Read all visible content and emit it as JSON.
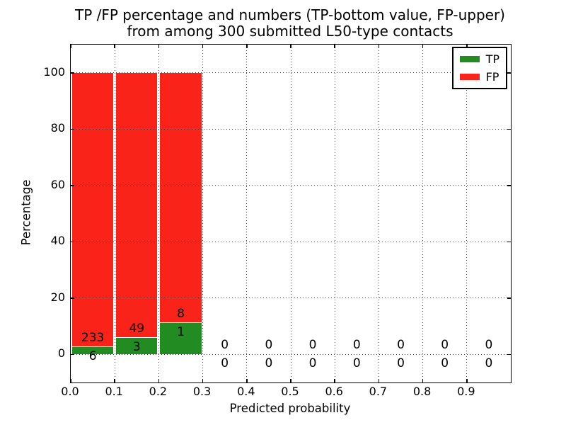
{
  "title": {
    "line1": "TP /FP percentage and numbers (TP-bottom value, FP-upper)",
    "line2": "from among 300 submitted L50-type contacts"
  },
  "axes": {
    "xlabel": "Predicted probability",
    "ylabel": "Percentage"
  },
  "legend": {
    "position": "upper right",
    "entries": [
      {
        "label": "TP",
        "color": "#228b22"
      },
      {
        "label": "FP",
        "color": "#fa231a"
      }
    ]
  },
  "colors": {
    "tp_green": "#228b22",
    "fp_red": "#fa231a",
    "grid": "#000000",
    "background": "#ffffff",
    "text": "#000000"
  },
  "chart_data": {
    "type": "bar",
    "stacked": true,
    "title": "TP /FP percentage and numbers (TP-bottom value, FP-upper) from among 300 submitted L50-type contacts",
    "xlabel": "Predicted probability",
    "ylabel": "Percentage",
    "xlim": [
      0.0,
      1.0
    ],
    "ylim": [
      -10,
      110
    ],
    "grid": "dotted",
    "legend_position": "upper right",
    "bin_width": 0.1,
    "total_contacts": 300,
    "xticks": [
      {
        "value": 0.0,
        "label": "0.0"
      },
      {
        "value": 0.1,
        "label": "0.1"
      },
      {
        "value": 0.2,
        "label": "0.2"
      },
      {
        "value": 0.3,
        "label": "0.3"
      },
      {
        "value": 0.4,
        "label": "0.4"
      },
      {
        "value": 0.5,
        "label": "0.5"
      },
      {
        "value": 0.6,
        "label": "0.6"
      },
      {
        "value": 0.7,
        "label": "0.7"
      },
      {
        "value": 0.8,
        "label": "0.8"
      },
      {
        "value": 0.9,
        "label": "0.9"
      }
    ],
    "yticks": [
      {
        "value": 0,
        "label": "0"
      },
      {
        "value": 20,
        "label": "20"
      },
      {
        "value": 40,
        "label": "40"
      },
      {
        "value": 60,
        "label": "60"
      },
      {
        "value": 80,
        "label": "80"
      },
      {
        "value": 100,
        "label": "100"
      }
    ],
    "bins": [
      {
        "x_start": 0.0,
        "x_end": 0.1,
        "tp_count": 6,
        "fp_count": 233,
        "tp_pct": 2.51,
        "fp_pct": 97.49
      },
      {
        "x_start": 0.1,
        "x_end": 0.2,
        "tp_count": 3,
        "fp_count": 49,
        "tp_pct": 5.77,
        "fp_pct": 94.23
      },
      {
        "x_start": 0.2,
        "x_end": 0.3,
        "tp_count": 1,
        "fp_count": 8,
        "tp_pct": 11.11,
        "fp_pct": 88.89
      },
      {
        "x_start": 0.3,
        "x_end": 0.4,
        "tp_count": 0,
        "fp_count": 0,
        "tp_pct": 0,
        "fp_pct": 0
      },
      {
        "x_start": 0.4,
        "x_end": 0.5,
        "tp_count": 0,
        "fp_count": 0,
        "tp_pct": 0,
        "fp_pct": 0
      },
      {
        "x_start": 0.5,
        "x_end": 0.6,
        "tp_count": 0,
        "fp_count": 0,
        "tp_pct": 0,
        "fp_pct": 0
      },
      {
        "x_start": 0.6,
        "x_end": 0.7,
        "tp_count": 0,
        "fp_count": 0,
        "tp_pct": 0,
        "fp_pct": 0
      },
      {
        "x_start": 0.7,
        "x_end": 0.8,
        "tp_count": 0,
        "fp_count": 0,
        "tp_pct": 0,
        "fp_pct": 0
      },
      {
        "x_start": 0.8,
        "x_end": 0.9,
        "tp_count": 0,
        "fp_count": 0,
        "tp_pct": 0,
        "fp_pct": 0
      },
      {
        "x_start": 0.9,
        "x_end": 1.0,
        "tp_count": 0,
        "fp_count": 0,
        "tp_pct": 0,
        "fp_pct": 0
      }
    ],
    "series": [
      {
        "name": "TP",
        "color": "#228b22",
        "values": [
          6,
          3,
          1,
          0,
          0,
          0,
          0,
          0,
          0,
          0
        ]
      },
      {
        "name": "FP",
        "color": "#fa231a",
        "values": [
          233,
          49,
          8,
          0,
          0,
          0,
          0,
          0,
          0,
          0
        ]
      }
    ]
  }
}
